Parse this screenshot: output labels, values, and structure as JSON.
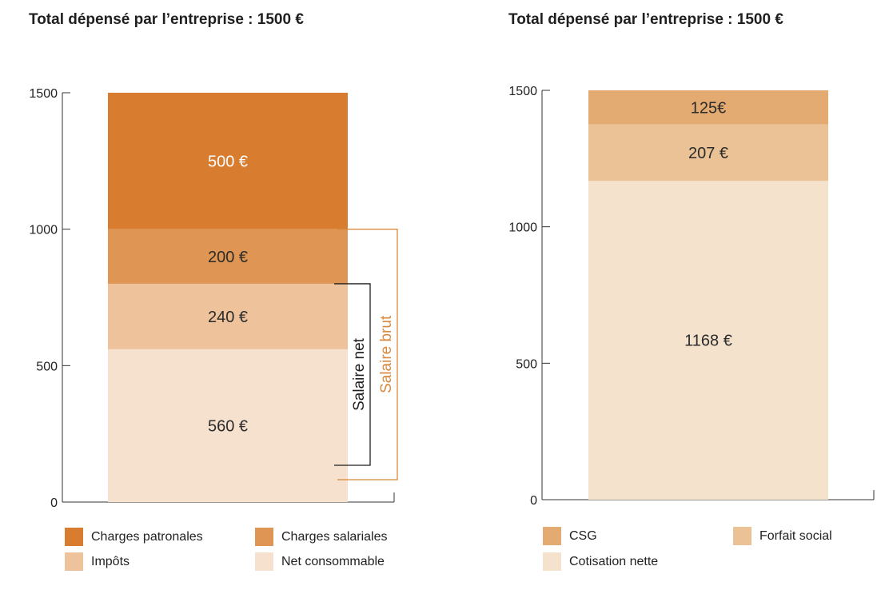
{
  "chart_data": [
    {
      "type": "bar",
      "stacked": true,
      "title": "Total dépensé par l’entreprise : 1500 €",
      "ylim": [
        0,
        1500
      ],
      "yticks": [
        "0",
        "500",
        "1000",
        "1500"
      ],
      "grid": false,
      "legend_position": "bottom",
      "series": [
        {
          "name": "Net consommable",
          "value": 560,
          "label": "560 €",
          "color": "#f5e1cd",
          "text_color": "#2b2b2b"
        },
        {
          "name": "Impôts",
          "value": 240,
          "label": "240 €",
          "color": "#eec29b",
          "text_color": "#2b2b2b"
        },
        {
          "name": "Charges salariales",
          "value": 200,
          "label": "200 €",
          "color": "#df9553",
          "text_color": "#2b2b2b"
        },
        {
          "name": "Charges patronales",
          "value": 500,
          "label": "500 €",
          "color": "#d87c30",
          "text_color": "#ffffff"
        }
      ],
      "brackets": [
        {
          "label": "Salaire net",
          "from": 0,
          "to": 800,
          "color": "#1f1f1f"
        },
        {
          "label": "Salaire brut",
          "from": 0,
          "to": 1000,
          "color": "#d8893e"
        }
      ]
    },
    {
      "type": "bar",
      "stacked": true,
      "title": "Total dépensé par l’entreprise : 1500 €",
      "ylim": [
        0,
        1500
      ],
      "yticks": [
        "0",
        "500",
        "1000",
        "1500"
      ],
      "grid": false,
      "legend_position": "bottom",
      "series": [
        {
          "name": "Cotisation nette",
          "value": 1168,
          "label": "1168 €",
          "color": "#f5e2cd",
          "text_color": "#2b2b2b"
        },
        {
          "name": "Forfait social",
          "value": 207,
          "label": "207 €",
          "color": "#ebc296",
          "text_color": "#2b2b2b"
        },
        {
          "name": "CSG",
          "value": 125,
          "label": "125€",
          "color": "#e3ab72",
          "text_color": "#2b2b2b"
        }
      ]
    }
  ],
  "legends": {
    "left": [
      "Charges patronales",
      "Charges salariales",
      "Impôts",
      "Net consommable"
    ],
    "left_colors": [
      "#d87c30",
      "#df9553",
      "#eec29b",
      "#f5e1cd"
    ],
    "right": [
      "CSG",
      "Forfait social",
      "Cotisation nette"
    ],
    "right_colors": [
      "#e3ab72",
      "#ebc296",
      "#f5e2cd"
    ]
  }
}
